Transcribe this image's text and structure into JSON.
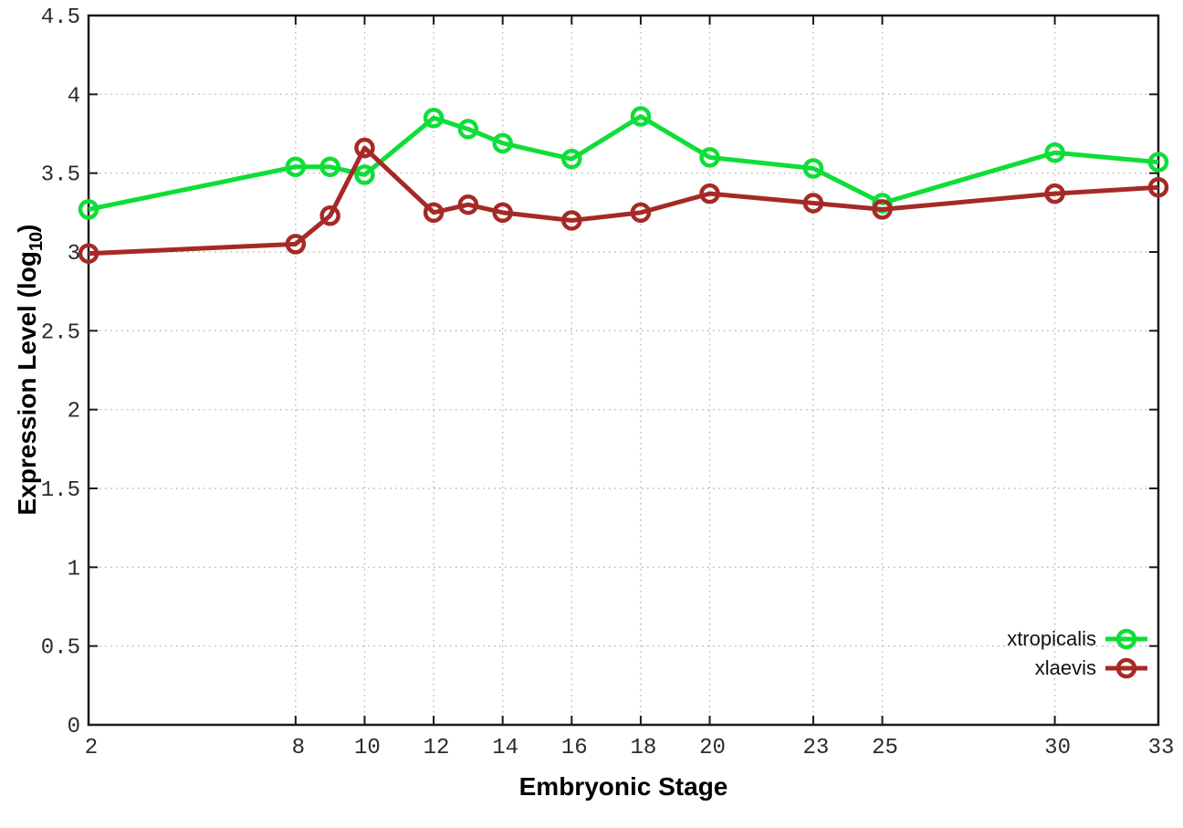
{
  "chart_data": {
    "type": "line",
    "title": "",
    "xlabel": "Embryonic Stage",
    "ylabel": "Expression Level (log10)",
    "ylabel_prefix": "Expression Level (log",
    "ylabel_sub": "10",
    "ylabel_suffix": ")",
    "xlim": [
      2,
      33
    ],
    "ylim": [
      0,
      4.5
    ],
    "grid": true,
    "legend_position": "bottom-right",
    "x": [
      2,
      8,
      9,
      10,
      12,
      13,
      14,
      16,
      18,
      20,
      23,
      25,
      30,
      33
    ],
    "xticks": [
      2,
      8,
      10,
      12,
      14,
      16,
      18,
      20,
      23,
      25,
      30,
      33
    ],
    "xtick_labels": [
      "2",
      "8",
      "10",
      "12",
      "14",
      "16",
      "18",
      "20",
      "23",
      "25",
      "30",
      "33"
    ],
    "yticks": [
      0,
      0.5,
      1,
      1.5,
      2,
      2.5,
      3,
      3.5,
      4,
      4.5
    ],
    "ytick_labels": [
      "0",
      "0.5",
      "1",
      "1.5",
      "2",
      "2.5",
      "3",
      "3.5",
      "4",
      "4.5"
    ],
    "series": [
      {
        "name": "xtropicalis",
        "color": "#0fdd38",
        "marker": "open-circle",
        "values": [
          3.27,
          3.54,
          3.54,
          3.49,
          3.85,
          3.78,
          3.69,
          3.59,
          3.86,
          3.6,
          3.53,
          3.31,
          3.63,
          3.57
        ]
      },
      {
        "name": "xlaevis",
        "color": "#a52a26",
        "marker": "open-circle",
        "values": [
          2.99,
          3.05,
          3.23,
          3.66,
          3.25,
          3.3,
          3.25,
          3.2,
          3.25,
          3.37,
          3.31,
          3.27,
          3.37,
          3.41
        ]
      }
    ]
  },
  "style_colors": {
    "border": "#1a1a1a",
    "grid": "#b5b5b5",
    "tick_text": "#2b2b2b",
    "background": "#ffffff"
  }
}
